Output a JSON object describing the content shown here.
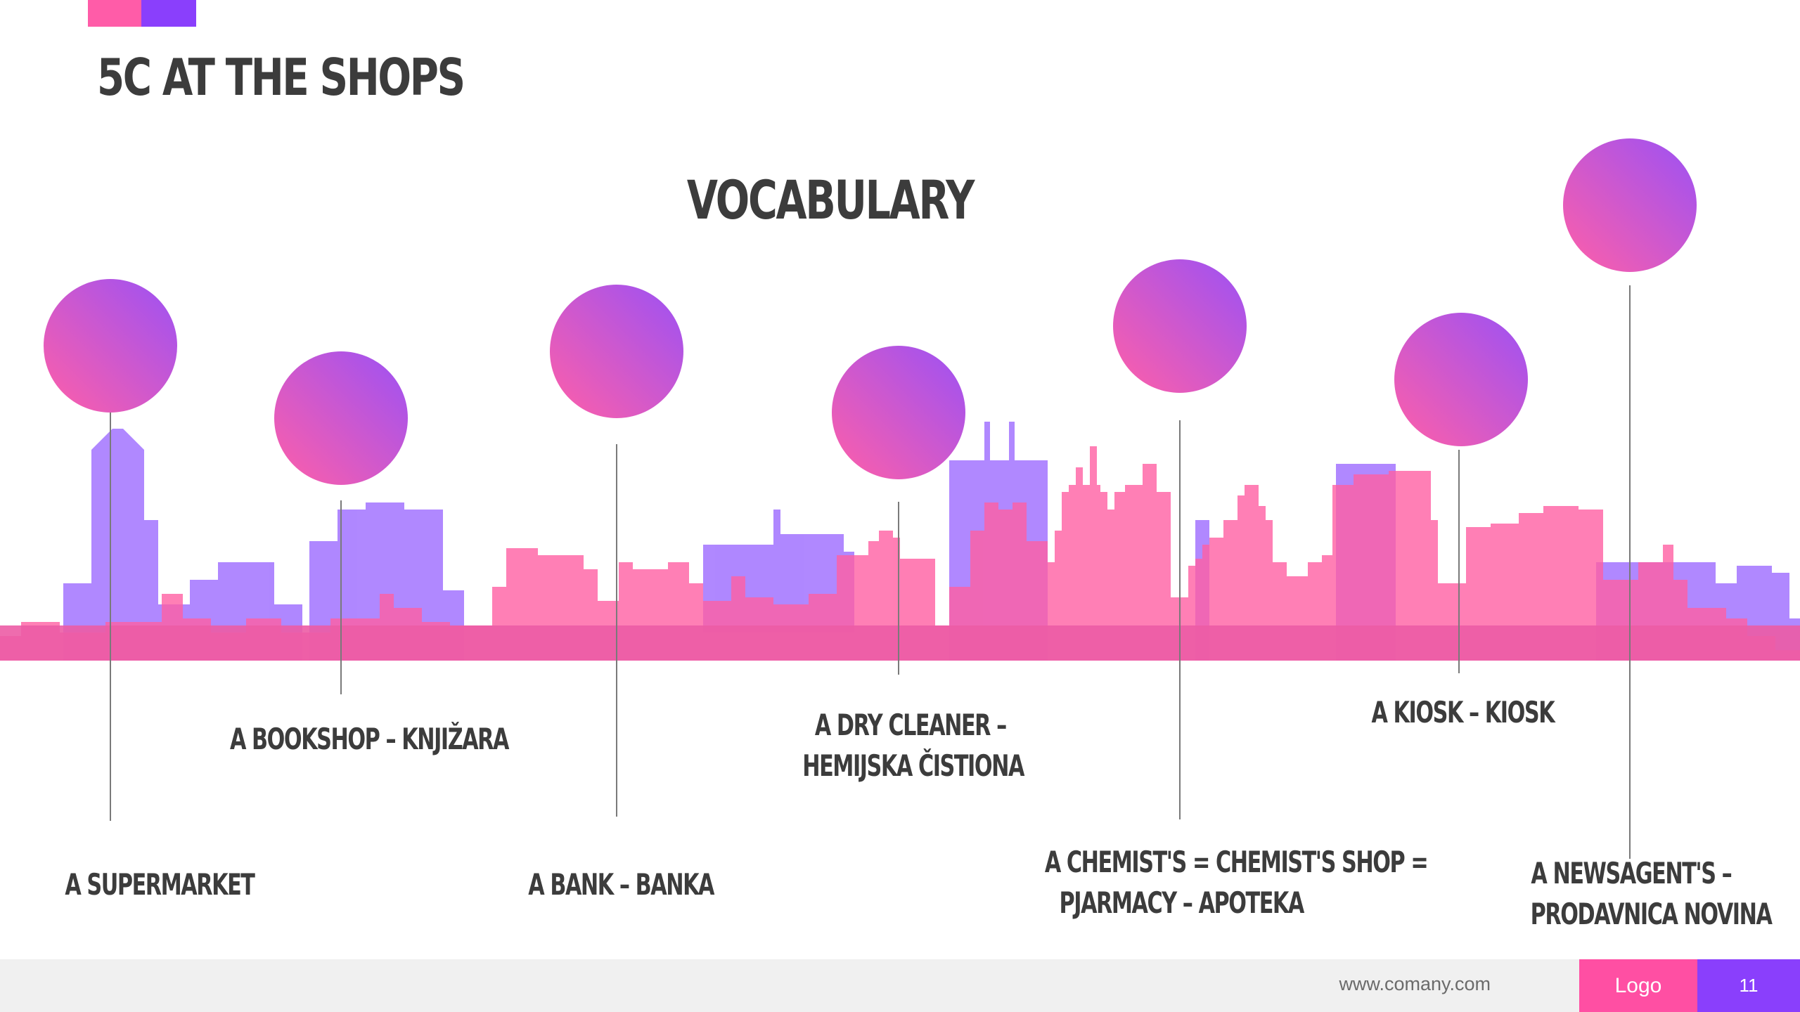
{
  "slide": {
    "title": "5C AT THE SHOPS",
    "subtitle": "VOCABULARY"
  },
  "vocabulary": [
    {
      "text": "A SUPERMARKET"
    },
    {
      "text": "A BOOKSHOP – KNJIŽARA"
    },
    {
      "text": "A BANK – BANKA"
    },
    {
      "text": "A DRY CLEANER –",
      "text2": "HEMIJSKA ČISTIONA"
    },
    {
      "text": "A CHEMIST'S = CHEMIST'S SHOP =",
      "text2": "PJARMACY – APOTEKA"
    },
    {
      "text": "A KIOSK – KIOSK"
    },
    {
      "text": "A NEWSAGENT'S –",
      "text2": "PRODAVNICA NOVINA"
    }
  ],
  "colors": {
    "pink": "#ff5ca8",
    "purple": "#8a3ffc",
    "skyline_pink": "#ff5fa2",
    "skyline_purple": "#a77bff"
  },
  "footer": {
    "url": "www.comany.com",
    "logo": "Logo",
    "page": "11"
  }
}
